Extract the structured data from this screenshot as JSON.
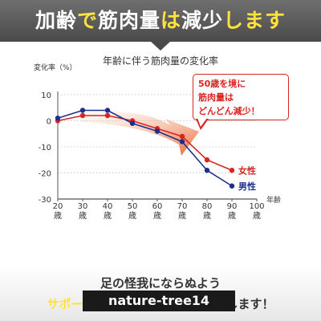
{
  "banner": {
    "parts": [
      {
        "text": "加齢",
        "accent": false
      },
      {
        "text": "で",
        "accent": true
      },
      {
        "text": "筋肉量",
        "accent": false
      },
      {
        "text": "は",
        "accent": true
      },
      {
        "text": "減少",
        "accent": false
      },
      {
        "text": "します",
        "accent": true
      }
    ]
  },
  "callout": {
    "line1": "50歳を境に",
    "line2": "筋肉量は",
    "line3": "どんどん減少！"
  },
  "colors": {
    "female": "#d9241f",
    "male": "#1c2f8f",
    "arrow": "#e8602a",
    "axis": "#555555",
    "grid": "#cccccc"
  },
  "chart_data": {
    "type": "line",
    "title": "年齢に伴う筋肉量の変化率",
    "ylabel": "変化率（%）",
    "xlabel": "年齢",
    "x": [
      20,
      30,
      40,
      50,
      60,
      70,
      80,
      90
    ],
    "xticks": [
      "20\n歳",
      "30\n歳",
      "40\n歳",
      "50\n歳",
      "60\n歳",
      "70\n歳",
      "80\n歳",
      "90\n歳",
      "100\n歳"
    ],
    "xlim": [
      20,
      100
    ],
    "yticks": [
      10,
      0,
      -10,
      -20,
      -30
    ],
    "ylim": [
      -30,
      10
    ],
    "grid": true,
    "series": [
      {
        "name": "女性",
        "color_key": "female",
        "values": [
          0,
          2,
          2,
          0,
          -3,
          -6,
          -15,
          -19
        ]
      },
      {
        "name": "男性",
        "color_key": "male",
        "values": [
          1,
          4,
          4,
          -1,
          -4,
          -8,
          -19,
          -25
        ]
      }
    ]
  },
  "footer": {
    "line1": "足の怪我にならぬよう",
    "line2_left": "サポータ",
    "line2_mid": "ー",
    "line2_right": "いたします！",
    "watermark": "nature-tree14"
  }
}
